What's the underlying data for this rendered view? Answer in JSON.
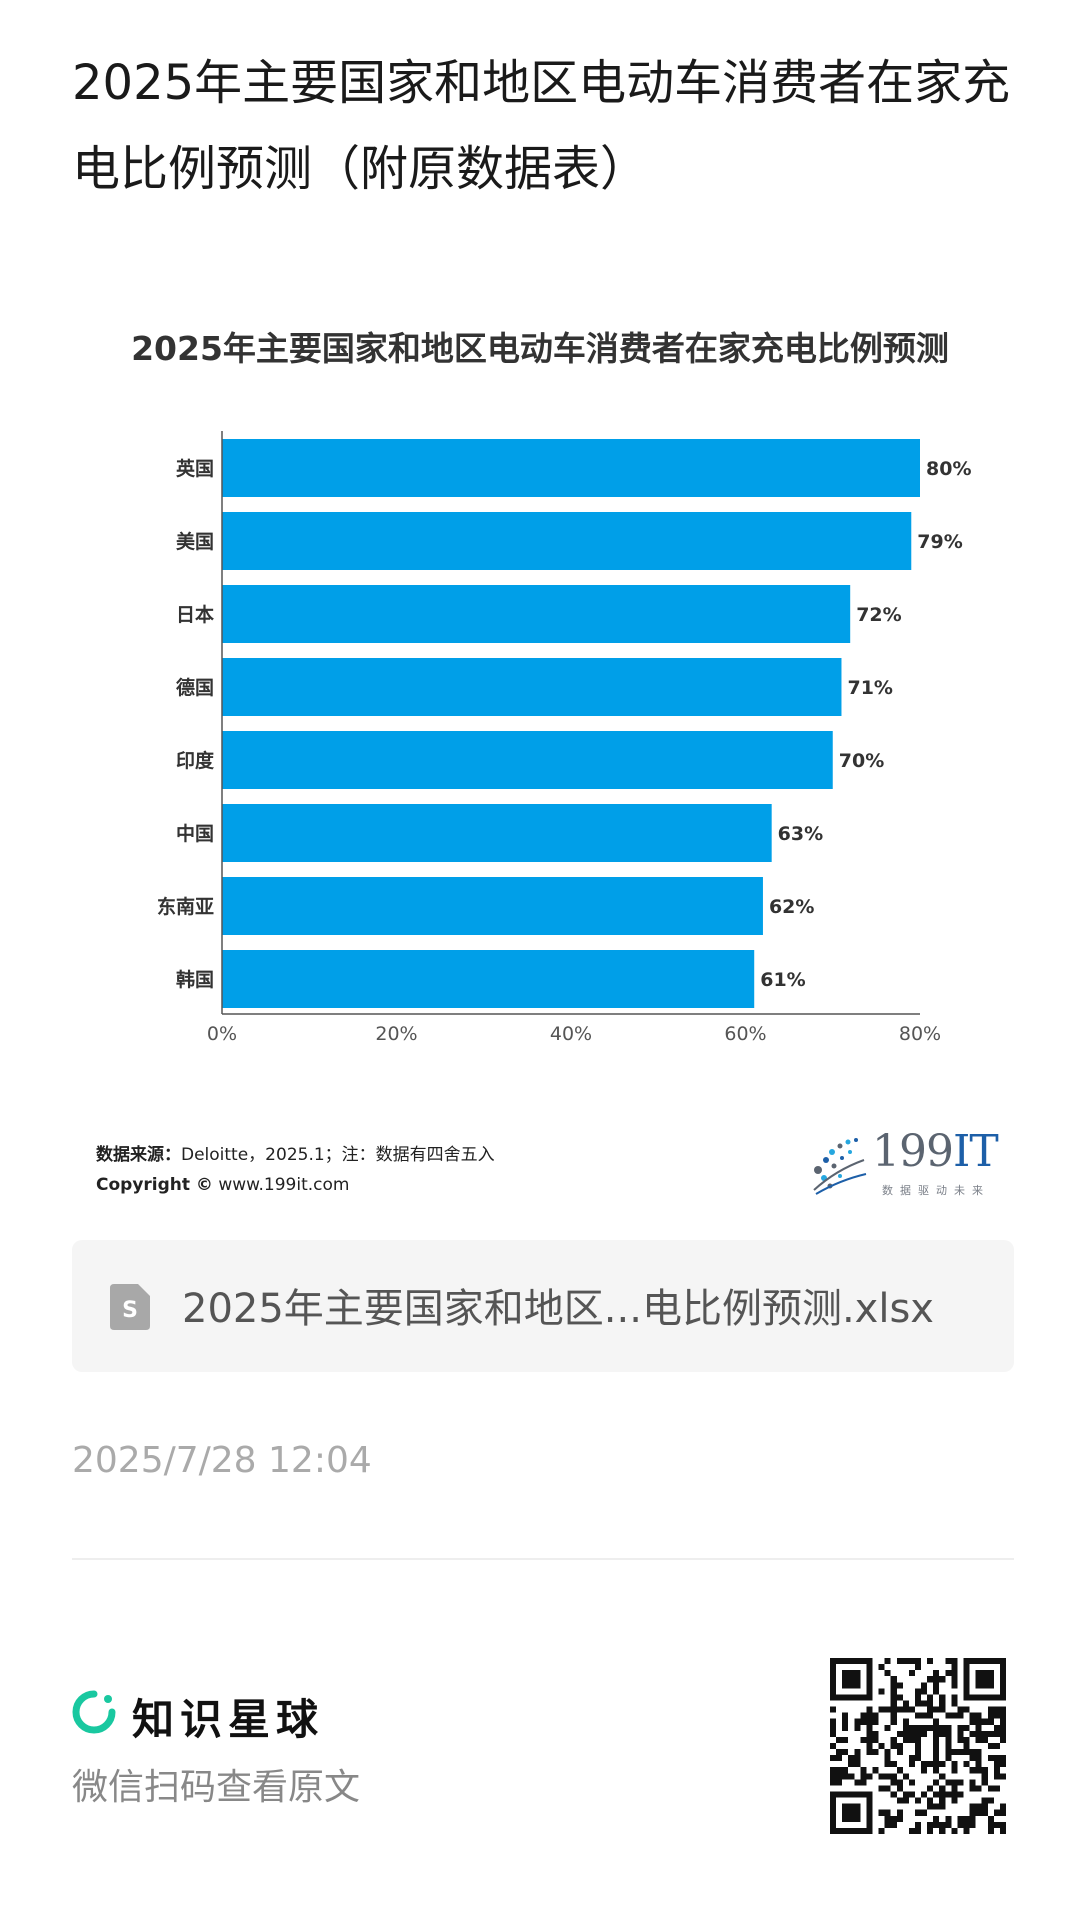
{
  "article": {
    "title": "2025年主要国家和地区电动车消费者在家充电比例预测（附原数据表）"
  },
  "chart_data": {
    "type": "bar",
    "orientation": "horizontal",
    "title": "2025年主要国家和地区电动车消费者在家充电比例预测",
    "categories": [
      "英国",
      "美国",
      "日本",
      "德国",
      "印度",
      "中国",
      "东南亚",
      "韩国"
    ],
    "values": [
      80,
      79,
      72,
      71,
      70,
      63,
      62,
      61
    ],
    "value_labels": [
      "80%",
      "79%",
      "72%",
      "71%",
      "70%",
      "63%",
      "62%",
      "61%"
    ],
    "xlim": [
      0,
      80
    ],
    "x_ticks": [
      "0%",
      "20%",
      "40%",
      "60%",
      "80%"
    ],
    "grid": false,
    "bar_color": "#009fe8"
  },
  "chart_footer": {
    "source_label": "数据来源：",
    "source_text": "Deloitte，2025.1；注：数据有四舍五入",
    "copyright_label": "Copyright ©",
    "copyright_text": " www.199it.com"
  },
  "brand": {
    "number": "199",
    "suffix": "IT",
    "tagline": "数据驱动未来"
  },
  "attachment": {
    "file_name": "2025年主要国家和地区...电比例预测.xlsx",
    "icon": "spreadsheet-file-icon"
  },
  "timestamp": "2025/7/28 12:04",
  "footer": {
    "app_name": "知识星球",
    "scan_hint": "微信扫码查看原文",
    "accent_color": "#19c8a0"
  }
}
